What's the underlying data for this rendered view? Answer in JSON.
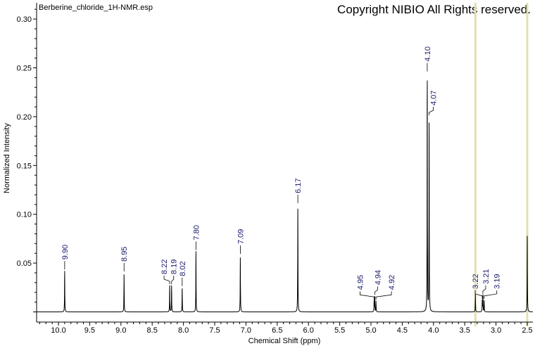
{
  "header": {
    "file_title": "Berberine_chloride_1H-NMR.esp",
    "copyright": "Copyright NIBIO All Rights reserved."
  },
  "chart_data": {
    "type": "line",
    "title": "",
    "xlabel": "Chemical Shift (ppm)",
    "ylabel": "Normalized Intensity",
    "xlim": [
      10.35,
      2.41
    ],
    "x_reversed": true,
    "ylim": [
      -0.01,
      0.316
    ],
    "x_ticks": [
      "10.0",
      "9.5",
      "9.0",
      "8.5",
      "8.0",
      "7.5",
      "7.0",
      "6.5",
      "6.0",
      "5.5",
      "5.0",
      "4.5",
      "4.0",
      "3.5",
      "3.0",
      "2.5"
    ],
    "y_ticks": [
      "0.05",
      "0.10",
      "0.15",
      "0.20",
      "0.25",
      "0.30"
    ],
    "grid": false,
    "line_color": "#000000",
    "label_color": "#1a1a6e",
    "reference_line_color": "#e3e0b0",
    "reference_lines": [
      3.33,
      2.5
    ],
    "peaks": [
      {
        "ppm": 9.9,
        "height": 0.042,
        "label": "9.90"
      },
      {
        "ppm": 8.95,
        "height": 0.04,
        "label": "8.95"
      },
      {
        "ppm": 8.22,
        "height": 0.027,
        "label": "8.22"
      },
      {
        "ppm": 8.19,
        "height": 0.027,
        "label": "8.19"
      },
      {
        "ppm": 8.02,
        "height": 0.025,
        "label": "8.02"
      },
      {
        "ppm": 7.8,
        "height": 0.062,
        "label": "7.80"
      },
      {
        "ppm": 7.09,
        "height": 0.058,
        "label": "7.09"
      },
      {
        "ppm": 6.17,
        "height": 0.11,
        "label": "6.17"
      },
      {
        "ppm": 4.95,
        "height": 0.011,
        "label": "4.95"
      },
      {
        "ppm": 4.94,
        "height": 0.016,
        "label": "4.94"
      },
      {
        "ppm": 4.92,
        "height": 0.011,
        "label": "4.92"
      },
      {
        "ppm": 4.1,
        "height": 0.245,
        "label": "4.10"
      },
      {
        "ppm": 4.07,
        "height": 0.2,
        "label": "4.07"
      },
      {
        "ppm": 3.33,
        "height": 0.018,
        "label": ""
      },
      {
        "ppm": 3.22,
        "height": 0.012,
        "label": "3.22"
      },
      {
        "ppm": 3.21,
        "height": 0.017,
        "label": "3.21"
      },
      {
        "ppm": 3.19,
        "height": 0.012,
        "label": "3.19"
      },
      {
        "ppm": 2.5,
        "height": 0.081,
        "label": ""
      }
    ]
  }
}
